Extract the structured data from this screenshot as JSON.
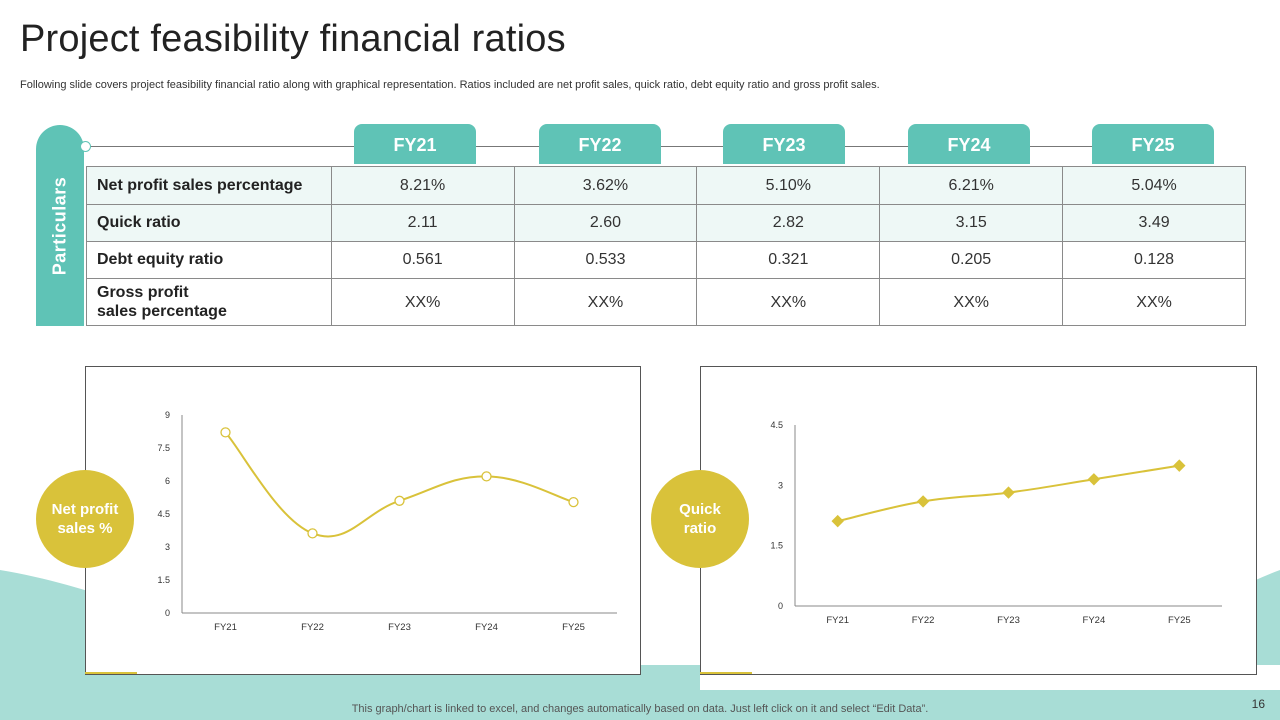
{
  "title": "Project feasibility financial ratios",
  "subtitle": "Following slide covers project feasibility financial ratio along with graphical representation. Ratios included are net profit sales, quick ratio, debt equity ratio and gross profit sales.",
  "particulars_label": "Particulars",
  "years": [
    "FY21",
    "FY22",
    "FY23",
    "FY24",
    "FY25"
  ],
  "table": {
    "rows": [
      {
        "label": "Net profit sales percentage",
        "values": [
          "8.21%",
          "3.62%",
          "5.10%",
          "6.21%",
          "5.04%"
        ]
      },
      {
        "label": "Quick ratio",
        "values": [
          "2.11",
          "2.60",
          "2.82",
          "3.15",
          "3.49"
        ]
      },
      {
        "label": "Debt equity ratio",
        "values": [
          "0.561",
          "0.533",
          "0.321",
          "0.205",
          "0.128"
        ]
      },
      {
        "label_line1": "Gross profit",
        "label_line2": "sales percentage",
        "values": [
          "XX%",
          "XX%",
          "XX%",
          "XX%",
          "XX%"
        ]
      }
    ]
  },
  "circles": {
    "left": {
      "line1": "Net profit",
      "line2": "sales %"
    },
    "right": {
      "line1": "Quick",
      "line2": "ratio"
    }
  },
  "colors": {
    "teal": "#5fc3b6",
    "gold": "#d9c23a",
    "light_teal": "#a8ddd6"
  },
  "chart_data": [
    {
      "type": "line",
      "categories": [
        "FY21",
        "FY22",
        "FY23",
        "FY24",
        "FY25"
      ],
      "values": [
        8.21,
        3.62,
        5.1,
        6.21,
        5.04
      ],
      "ylim": [
        0,
        9
      ],
      "yticks": [
        "0",
        "1.5",
        "3",
        "4.5",
        "6",
        "7.5",
        "9"
      ],
      "marker": "circle",
      "smooth": true
    },
    {
      "type": "line",
      "categories": [
        "FY21",
        "FY22",
        "FY23",
        "FY24",
        "FY25"
      ],
      "values": [
        2.11,
        2.6,
        2.82,
        3.15,
        3.49
      ],
      "ylim": [
        0,
        4.5
      ],
      "yticks": [
        "0",
        "1.5",
        "3",
        "4.5"
      ],
      "marker": "diamond",
      "smooth": true
    }
  ],
  "footer": "This graph/chart is linked to excel,  and changes automatically based on data. Just left click on it and select “Edit Data”.",
  "page_number": "16"
}
